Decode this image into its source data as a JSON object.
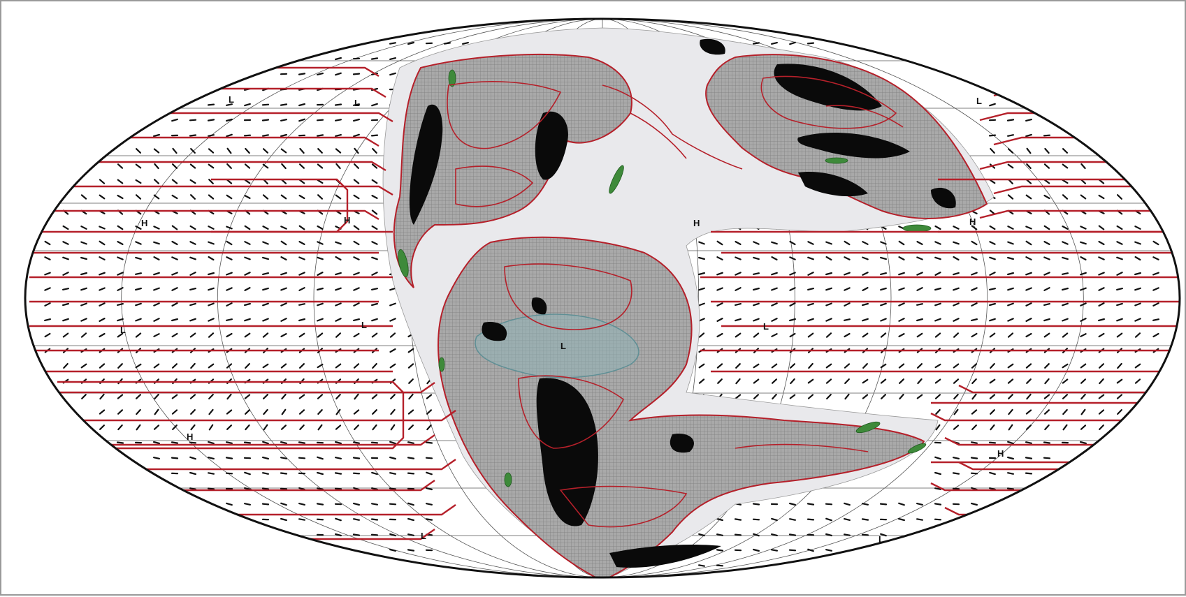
{
  "map": {
    "projection": "mollweide",
    "colors": {
      "contour": "#b5202a",
      "land": "#a9a9a9",
      "land_hatch": "#7d7d7d",
      "highland": "#0a0a0a",
      "wetland": "#3e8a3a",
      "shelf": "#e9e9ec",
      "lake": "#7aa4a8",
      "graticule": "#555555",
      "wind": "#111111",
      "ocean": "#ffffff"
    },
    "pressure_labels": [
      {
        "text": "L"
      },
      {
        "text": "L"
      },
      {
        "text": "H"
      },
      {
        "text": "H"
      },
      {
        "text": "H"
      },
      {
        "text": "H"
      },
      {
        "text": "L"
      },
      {
        "text": "L"
      },
      {
        "text": "H"
      },
      {
        "text": "L"
      },
      {
        "text": "L"
      },
      {
        "text": "H"
      },
      {
        "text": "L"
      },
      {
        "text": "L"
      },
      {
        "text": "L"
      }
    ]
  }
}
